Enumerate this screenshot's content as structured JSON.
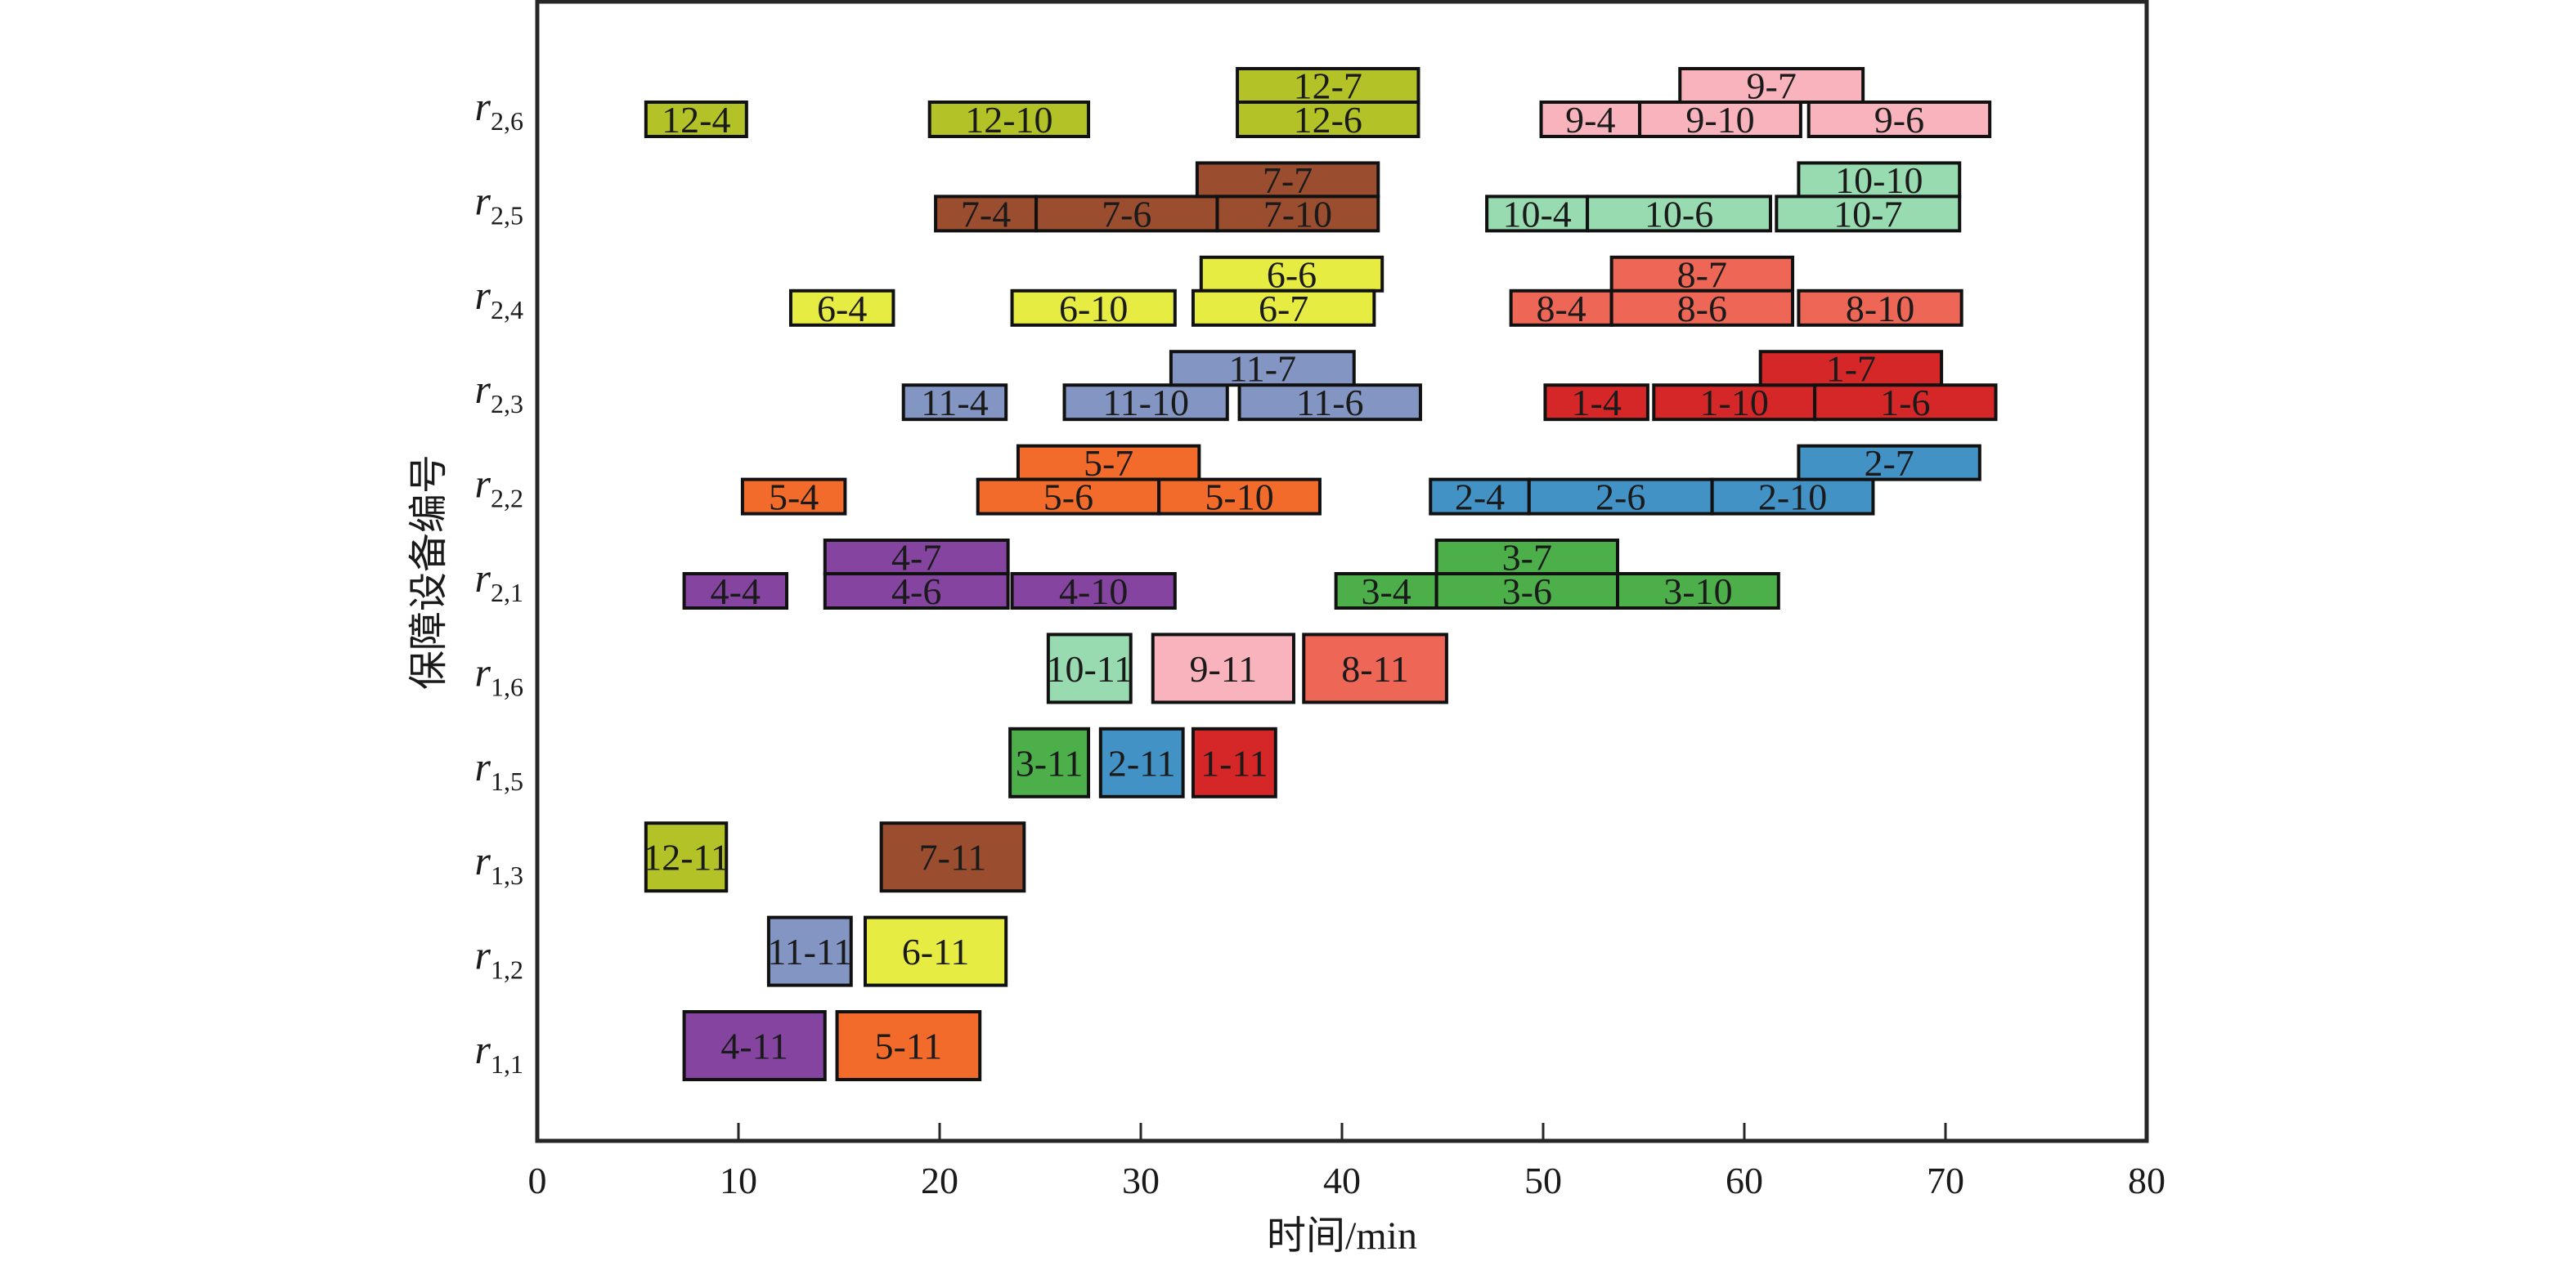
{
  "chart_data": {
    "type": "gantt",
    "title": "",
    "xlabel": "时间/min",
    "ylabel": "保障设备编号",
    "xlim": [
      0,
      80
    ],
    "xticks": [
      0,
      10,
      20,
      30,
      40,
      50,
      60,
      70,
      80
    ],
    "grid": false,
    "legend": "none",
    "colors": {
      "1": "#d62728",
      "2": "#4292c6",
      "3": "#4daf4a",
      "4": "#8444a0",
      "5": "#f36b2a",
      "6": "#e6ec41",
      "7": "#9a4e2f",
      "8": "#ee6655",
      "9": "#f8b3bd",
      "10": "#99dbb0",
      "11": "#8395c3",
      "12": "#b3c227"
    },
    "rows": [
      {
        "id": "r1,1",
        "base": "r",
        "sub": "1,1"
      },
      {
        "id": "r1,2",
        "base": "r",
        "sub": "1,2"
      },
      {
        "id": "r1,3",
        "base": "r",
        "sub": "1,3"
      },
      {
        "id": "r1,5",
        "base": "r",
        "sub": "1,5"
      },
      {
        "id": "r1,6",
        "base": "r",
        "sub": "1,6"
      },
      {
        "id": "r2,1",
        "base": "r",
        "sub": "2,1"
      },
      {
        "id": "r2,2",
        "base": "r",
        "sub": "2,2"
      },
      {
        "id": "r2,3",
        "base": "r",
        "sub": "2,3"
      },
      {
        "id": "r2,4",
        "base": "r",
        "sub": "2,4"
      },
      {
        "id": "r2,5",
        "base": "r",
        "sub": "2,5"
      },
      {
        "id": "r2,6",
        "base": "r",
        "sub": "2,6"
      }
    ],
    "tasks": [
      {
        "label": "4-11",
        "group": "4",
        "row": "r1,1",
        "level": "full",
        "start": 7.3,
        "end": 14.3
      },
      {
        "label": "5-11",
        "group": "5",
        "row": "r1,1",
        "level": "full",
        "start": 14.9,
        "end": 22.0
      },
      {
        "label": "11-11",
        "group": "11",
        "row": "r1,2",
        "level": "full",
        "start": 11.5,
        "end": 15.6
      },
      {
        "label": "6-11",
        "group": "6",
        "row": "r1,2",
        "level": "full",
        "start": 16.3,
        "end": 23.3
      },
      {
        "label": "12-11",
        "group": "12",
        "row": "r1,3",
        "level": "full",
        "start": 5.4,
        "end": 9.4
      },
      {
        "label": "7-11",
        "group": "7",
        "row": "r1,3",
        "level": "full",
        "start": 17.1,
        "end": 24.2
      },
      {
        "label": "3-11",
        "group": "3",
        "row": "r1,5",
        "level": "full",
        "start": 23.5,
        "end": 27.4
      },
      {
        "label": "2-11",
        "group": "2",
        "row": "r1,5",
        "level": "full",
        "start": 28.0,
        "end": 32.1
      },
      {
        "label": "1-11",
        "group": "1",
        "row": "r1,5",
        "level": "full",
        "start": 32.6,
        "end": 36.7
      },
      {
        "label": "10-11",
        "group": "10",
        "row": "r1,6",
        "level": "full",
        "start": 25.4,
        "end": 29.5
      },
      {
        "label": "9-11",
        "group": "9",
        "row": "r1,6",
        "level": "full",
        "start": 30.6,
        "end": 37.6
      },
      {
        "label": "8-11",
        "group": "8",
        "row": "r1,6",
        "level": "full",
        "start": 38.1,
        "end": 45.2
      },
      {
        "label": "4-4",
        "group": "4",
        "row": "r2,1",
        "level": "lower",
        "start": 7.3,
        "end": 12.4
      },
      {
        "label": "4-7",
        "group": "4",
        "row": "r2,1",
        "level": "upper",
        "start": 14.3,
        "end": 23.4
      },
      {
        "label": "4-6",
        "group": "4",
        "row": "r2,1",
        "level": "lower",
        "start": 14.3,
        "end": 23.4
      },
      {
        "label": "4-10",
        "group": "4",
        "row": "r2,1",
        "level": "lower",
        "start": 23.6,
        "end": 31.7
      },
      {
        "label": "3-4",
        "group": "3",
        "row": "r2,1",
        "level": "lower",
        "start": 39.7,
        "end": 44.7
      },
      {
        "label": "3-7",
        "group": "3",
        "row": "r2,1",
        "level": "upper",
        "start": 44.7,
        "end": 53.7
      },
      {
        "label": "3-6",
        "group": "3",
        "row": "r2,1",
        "level": "lower",
        "start": 44.7,
        "end": 53.7
      },
      {
        "label": "3-10",
        "group": "3",
        "row": "r2,1",
        "level": "lower",
        "start": 53.7,
        "end": 61.7
      },
      {
        "label": "5-4",
        "group": "5",
        "row": "r2,2",
        "level": "lower",
        "start": 10.2,
        "end": 15.3
      },
      {
        "label": "5-7",
        "group": "5",
        "row": "r2,2",
        "level": "upper",
        "start": 23.9,
        "end": 32.9
      },
      {
        "label": "5-6",
        "group": "5",
        "row": "r2,2",
        "level": "lower",
        "start": 21.9,
        "end": 30.9
      },
      {
        "label": "5-10",
        "group": "5",
        "row": "r2,2",
        "level": "lower",
        "start": 30.9,
        "end": 38.9
      },
      {
        "label": "2-4",
        "group": "2",
        "row": "r2,2",
        "level": "lower",
        "start": 44.4,
        "end": 49.3
      },
      {
        "label": "2-6",
        "group": "2",
        "row": "r2,2",
        "level": "lower",
        "start": 49.3,
        "end": 58.4
      },
      {
        "label": "2-10",
        "group": "2",
        "row": "r2,2",
        "level": "lower",
        "start": 58.4,
        "end": 66.4
      },
      {
        "label": "2-7",
        "group": "2",
        "row": "r2,2",
        "level": "upper",
        "start": 62.7,
        "end": 71.7
      },
      {
        "label": "11-4",
        "group": "11",
        "row": "r2,3",
        "level": "lower",
        "start": 18.2,
        "end": 23.3
      },
      {
        "label": "11-10",
        "group": "11",
        "row": "r2,3",
        "level": "lower",
        "start": 26.2,
        "end": 34.3
      },
      {
        "label": "11-7",
        "group": "11",
        "row": "r2,3",
        "level": "upper",
        "start": 31.5,
        "end": 40.6
      },
      {
        "label": "11-6",
        "group": "11",
        "row": "r2,3",
        "level": "lower",
        "start": 34.9,
        "end": 43.9
      },
      {
        "label": "1-4",
        "group": "1",
        "row": "r2,3",
        "level": "lower",
        "start": 50.1,
        "end": 55.2
      },
      {
        "label": "1-10",
        "group": "1",
        "row": "r2,3",
        "level": "lower",
        "start": 55.5,
        "end": 63.5
      },
      {
        "label": "1-7",
        "group": "1",
        "row": "r2,3",
        "level": "upper",
        "start": 60.8,
        "end": 69.8
      },
      {
        "label": "1-6",
        "group": "1",
        "row": "r2,3",
        "level": "lower",
        "start": 63.5,
        "end": 72.5
      },
      {
        "label": "6-4",
        "group": "6",
        "row": "r2,4",
        "level": "lower",
        "start": 12.6,
        "end": 17.7
      },
      {
        "label": "6-10",
        "group": "6",
        "row": "r2,4",
        "level": "lower",
        "start": 23.6,
        "end": 31.7
      },
      {
        "label": "6-6",
        "group": "6",
        "row": "r2,4",
        "level": "upper",
        "start": 33.0,
        "end": 42.0
      },
      {
        "label": "6-7",
        "group": "6",
        "row": "r2,4",
        "level": "lower",
        "start": 32.6,
        "end": 41.6
      },
      {
        "label": "8-4",
        "group": "8",
        "row": "r2,4",
        "level": "lower",
        "start": 48.4,
        "end": 53.4
      },
      {
        "label": "8-7",
        "group": "8",
        "row": "r2,4",
        "level": "upper",
        "start": 53.4,
        "end": 62.4
      },
      {
        "label": "8-6",
        "group": "8",
        "row": "r2,4",
        "level": "lower",
        "start": 53.4,
        "end": 62.4
      },
      {
        "label": "8-10",
        "group": "8",
        "row": "r2,4",
        "level": "lower",
        "start": 62.7,
        "end": 70.8
      },
      {
        "label": "7-4",
        "group": "7",
        "row": "r2,5",
        "level": "lower",
        "start": 19.8,
        "end": 24.8
      },
      {
        "label": "7-6",
        "group": "7",
        "row": "r2,5",
        "level": "lower",
        "start": 24.8,
        "end": 33.8
      },
      {
        "label": "7-7",
        "group": "7",
        "row": "r2,5",
        "level": "upper",
        "start": 32.8,
        "end": 41.8
      },
      {
        "label": "7-10",
        "group": "7",
        "row": "r2,5",
        "level": "lower",
        "start": 33.8,
        "end": 41.8
      },
      {
        "label": "10-4",
        "group": "10",
        "row": "r2,5",
        "level": "lower",
        "start": 47.2,
        "end": 52.2
      },
      {
        "label": "10-6",
        "group": "10",
        "row": "r2,5",
        "level": "lower",
        "start": 52.2,
        "end": 61.3
      },
      {
        "label": "10-10",
        "group": "10",
        "row": "r2,5",
        "level": "upper",
        "start": 62.7,
        "end": 70.7
      },
      {
        "label": "10-7",
        "group": "10",
        "row": "r2,5",
        "level": "lower",
        "start": 61.6,
        "end": 70.7
      },
      {
        "label": "12-4",
        "group": "12",
        "row": "r2,6",
        "level": "lower",
        "start": 5.4,
        "end": 10.4
      },
      {
        "label": "12-10",
        "group": "12",
        "row": "r2,6",
        "level": "lower",
        "start": 19.5,
        "end": 27.4
      },
      {
        "label": "12-7",
        "group": "12",
        "row": "r2,6",
        "level": "upper",
        "start": 34.8,
        "end": 43.8
      },
      {
        "label": "12-6",
        "group": "12",
        "row": "r2,6",
        "level": "lower",
        "start": 34.8,
        "end": 43.8
      },
      {
        "label": "9-4",
        "group": "9",
        "row": "r2,6",
        "level": "lower",
        "start": 49.9,
        "end": 54.8
      },
      {
        "label": "9-7",
        "group": "9",
        "row": "r2,6",
        "level": "upper",
        "start": 56.8,
        "end": 65.9
      },
      {
        "label": "9-10",
        "group": "9",
        "row": "r2,6",
        "level": "lower",
        "start": 54.8,
        "end": 62.8
      },
      {
        "label": "9-6",
        "group": "9",
        "row": "r2,6",
        "level": "lower",
        "start": 63.2,
        "end": 72.2
      }
    ]
  }
}
